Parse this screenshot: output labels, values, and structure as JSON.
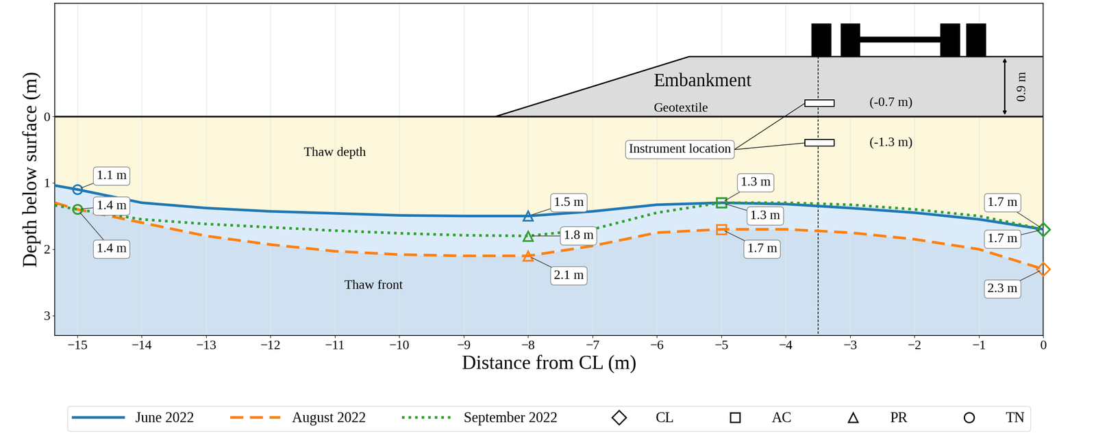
{
  "chart_data": {
    "type": "line",
    "xlabel": "Distance from CL (m)",
    "ylabel": "Depth below surface (m)",
    "xlim": [
      -15.35,
      0
    ],
    "ylim": [
      3.3,
      -1.7
    ],
    "xticks": [
      {
        "value": -15,
        "label": "−15"
      },
      {
        "value": -14,
        "label": "−14"
      },
      {
        "value": -13,
        "label": "−13"
      },
      {
        "value": -12,
        "label": "−12"
      },
      {
        "value": -11,
        "label": "−11"
      },
      {
        "value": -10,
        "label": "−10"
      },
      {
        "value": -9,
        "label": "−9"
      },
      {
        "value": -8,
        "label": "−8"
      },
      {
        "value": -7,
        "label": "−7"
      },
      {
        "value": -6,
        "label": "−6"
      },
      {
        "value": -5,
        "label": "−5"
      },
      {
        "value": -4,
        "label": "−4"
      },
      {
        "value": -3,
        "label": "−3"
      },
      {
        "value": -2,
        "label": "−2"
      },
      {
        "value": -1,
        "label": "−1"
      },
      {
        "value": 0,
        "label": "0"
      }
    ],
    "yticks": [
      0,
      1,
      2,
      3
    ],
    "grid": true,
    "legend": "lower center",
    "x": [
      -15.35,
      -15,
      -14,
      -13,
      -12,
      -11,
      -10,
      -9,
      -8,
      -7,
      -6,
      -5,
      -4,
      -3,
      -2,
      -1,
      0
    ],
    "series": [
      {
        "name": "June 2022",
        "color": "#1f77b4",
        "line_style": "solid",
        "values": [
          1.04,
          1.1,
          1.3,
          1.38,
          1.43,
          1.46,
          1.49,
          1.5,
          1.5,
          1.43,
          1.33,
          1.3,
          1.32,
          1.38,
          1.45,
          1.55,
          1.7
        ],
        "points": [
          {
            "location": "TN",
            "value": 1.1,
            "label": "1.1 m"
          },
          {
            "location": "PR",
            "value": 1.5,
            "label": "1.5 m"
          },
          {
            "location": "AC",
            "value": 1.3,
            "label": "1.3 m"
          },
          {
            "location": "CL",
            "value": 1.7,
            "label": "1.7 m"
          }
        ]
      },
      {
        "name": "August 2022",
        "color": "#ff7f0e",
        "line_style": "dashed",
        "values": [
          1.3,
          1.4,
          1.6,
          1.8,
          1.93,
          2.03,
          2.08,
          2.1,
          2.1,
          1.95,
          1.75,
          1.7,
          1.7,
          1.75,
          1.85,
          2.0,
          2.3
        ],
        "points": [
          {
            "location": "TN",
            "value": 1.4,
            "label": "1.4 m"
          },
          {
            "location": "PR",
            "value": 2.1,
            "label": "2.1 m"
          },
          {
            "location": "AC",
            "value": 1.7,
            "label": "1.7 m"
          },
          {
            "location": "CL",
            "value": 2.3,
            "label": "2.3 m"
          }
        ]
      },
      {
        "name": "September 2022",
        "color": "#2ca02c",
        "line_style": "dotted",
        "values": [
          1.34,
          1.4,
          1.55,
          1.62,
          1.67,
          1.72,
          1.76,
          1.79,
          1.8,
          1.7,
          1.45,
          1.3,
          1.3,
          1.33,
          1.4,
          1.5,
          1.7
        ],
        "points": [
          {
            "location": "TN",
            "value": 1.4,
            "label": "1.4 m"
          },
          {
            "location": "PR",
            "value": 1.8,
            "label": "1.8 m"
          },
          {
            "location": "AC",
            "value": 1.3,
            "label": "1.3 m"
          },
          {
            "location": "CL",
            "value": 1.7,
            "label": "1.7 m"
          }
        ]
      }
    ],
    "locations": [
      {
        "name": "CL",
        "x": 0,
        "marker": "diamond"
      },
      {
        "name": "AC",
        "x": -5,
        "marker": "square"
      },
      {
        "name": "PR",
        "x": -8,
        "marker": "triangle"
      },
      {
        "name": "TN",
        "x": -15,
        "marker": "circle"
      }
    ],
    "regions": {
      "upper": "Thaw depth",
      "lower": "Thaw front"
    },
    "embankment": {
      "label": "Embankment",
      "layer": "Geotextile",
      "toe_x": -8.5,
      "crest_x": -5.5,
      "height": 0.9,
      "height_label": "0.9 m"
    },
    "instruments": {
      "label": "Instrument location",
      "x": -3.5,
      "depths": [
        -0.7,
        -1.3
      ],
      "depth_labels": [
        "(-0.7 m)",
        "(-1.3 m)"
      ]
    }
  }
}
